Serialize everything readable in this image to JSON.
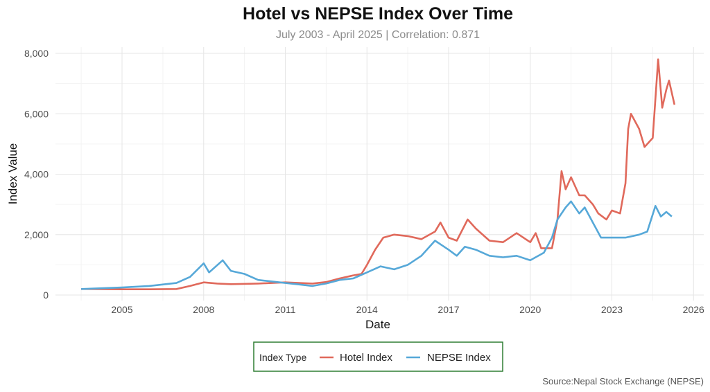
{
  "chart_data": {
    "type": "line",
    "title": "Hotel vs NEPSE Index Over Time",
    "subtitle": "July 2003 - April 2025 | Correlation: 0.871",
    "xlabel": "Date",
    "ylabel": "Index Value",
    "caption": "Source:Nepal Stock Exchange (NEPSE)",
    "xlim": [
      2002.6,
      2026.4
    ],
    "ylim": [
      0,
      8000
    ],
    "x_ticks": [
      2005,
      2008,
      2011,
      2014,
      2017,
      2020,
      2023,
      2026
    ],
    "x_tick_labels": [
      "2005",
      "2008",
      "2011",
      "2014",
      "2017",
      "2020",
      "2023",
      "2026"
    ],
    "y_ticks": [
      0,
      2000,
      4000,
      6000,
      8000
    ],
    "y_tick_labels": [
      "0",
      "2,000",
      "4,000",
      "6,000",
      "8,000"
    ],
    "grid": true,
    "legend": {
      "title": "Index Type",
      "placement": "bottom",
      "border_color": "#2e7d32"
    },
    "series": [
      {
        "name": "Hotel Index",
        "color": "#e0695b",
        "points": [
          [
            2003.5,
            200
          ],
          [
            2005,
            190
          ],
          [
            2006,
            190
          ],
          [
            2007,
            200
          ],
          [
            2007.5,
            300
          ],
          [
            2008,
            420
          ],
          [
            2008.5,
            380
          ],
          [
            2009,
            360
          ],
          [
            2010,
            380
          ],
          [
            2011,
            420
          ],
          [
            2011.5,
            400
          ],
          [
            2012,
            380
          ],
          [
            2012.5,
            430
          ],
          [
            2013,
            550
          ],
          [
            2013.5,
            650
          ],
          [
            2013.8,
            700
          ],
          [
            2014,
            1000
          ],
          [
            2014.3,
            1500
          ],
          [
            2014.6,
            1900
          ],
          [
            2015,
            2000
          ],
          [
            2015.5,
            1950
          ],
          [
            2016,
            1850
          ],
          [
            2016.5,
            2100
          ],
          [
            2016.7,
            2400
          ],
          [
            2017,
            1900
          ],
          [
            2017.3,
            1800
          ],
          [
            2017.7,
            2500
          ],
          [
            2018,
            2200
          ],
          [
            2018.5,
            1800
          ],
          [
            2019,
            1750
          ],
          [
            2019.5,
            2050
          ],
          [
            2020,
            1750
          ],
          [
            2020.2,
            2050
          ],
          [
            2020.4,
            1550
          ],
          [
            2020.8,
            1550
          ],
          [
            2021,
            2500
          ],
          [
            2021.15,
            4100
          ],
          [
            2021.3,
            3500
          ],
          [
            2021.5,
            3900
          ],
          [
            2021.8,
            3300
          ],
          [
            2022,
            3300
          ],
          [
            2022.3,
            3000
          ],
          [
            2022.5,
            2700
          ],
          [
            2022.8,
            2500
          ],
          [
            2023,
            2800
          ],
          [
            2023.3,
            2700
          ],
          [
            2023.5,
            3700
          ],
          [
            2023.6,
            5500
          ],
          [
            2023.7,
            6000
          ],
          [
            2024,
            5500
          ],
          [
            2024.2,
            4900
          ],
          [
            2024.5,
            5200
          ],
          [
            2024.6,
            6500
          ],
          [
            2024.7,
            7800
          ],
          [
            2024.85,
            6200
          ],
          [
            2025,
            6800
          ],
          [
            2025.1,
            7100
          ],
          [
            2025.3,
            6300
          ]
        ]
      },
      {
        "name": "NEPSE Index",
        "color": "#56a8d8",
        "points": [
          [
            2003.5,
            200
          ],
          [
            2005,
            250
          ],
          [
            2006,
            300
          ],
          [
            2007,
            400
          ],
          [
            2007.5,
            600
          ],
          [
            2008,
            1050
          ],
          [
            2008.2,
            750
          ],
          [
            2008.7,
            1150
          ],
          [
            2009,
            800
          ],
          [
            2009.5,
            700
          ],
          [
            2010,
            500
          ],
          [
            2011,
            400
          ],
          [
            2011.5,
            350
          ],
          [
            2012,
            300
          ],
          [
            2012.5,
            380
          ],
          [
            2013,
            500
          ],
          [
            2013.5,
            550
          ],
          [
            2014,
            750
          ],
          [
            2014.5,
            950
          ],
          [
            2015,
            850
          ],
          [
            2015.5,
            1000
          ],
          [
            2016,
            1300
          ],
          [
            2016.5,
            1800
          ],
          [
            2017,
            1500
          ],
          [
            2017.3,
            1300
          ],
          [
            2017.6,
            1600
          ],
          [
            2018,
            1500
          ],
          [
            2018.5,
            1300
          ],
          [
            2019,
            1250
          ],
          [
            2019.5,
            1300
          ],
          [
            2020,
            1150
          ],
          [
            2020.5,
            1400
          ],
          [
            2020.8,
            1900
          ],
          [
            2021,
            2500
          ],
          [
            2021.3,
            2900
          ],
          [
            2021.5,
            3100
          ],
          [
            2021.8,
            2700
          ],
          [
            2022,
            2900
          ],
          [
            2022.3,
            2400
          ],
          [
            2022.6,
            1900
          ],
          [
            2023,
            1900
          ],
          [
            2023.5,
            1900
          ],
          [
            2024,
            2000
          ],
          [
            2024.3,
            2100
          ],
          [
            2024.6,
            2950
          ],
          [
            2024.8,
            2600
          ],
          [
            2025,
            2750
          ],
          [
            2025.2,
            2600
          ]
        ]
      }
    ]
  }
}
